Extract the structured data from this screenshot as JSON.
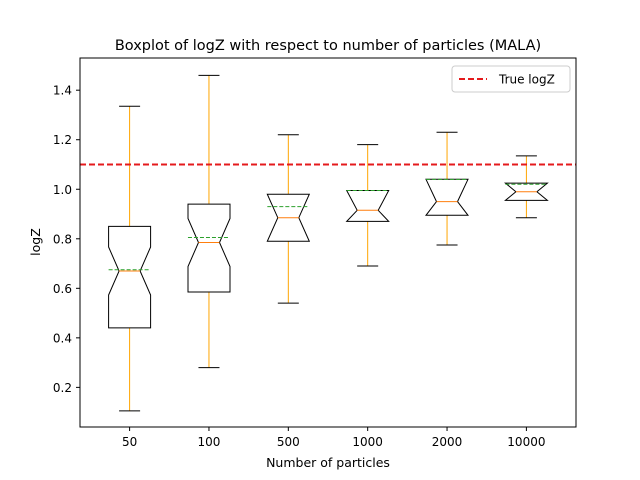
{
  "chart_data": {
    "type": "boxplot",
    "title": "Boxplot of logZ with respect to number of particles (MALA)",
    "xlabel": "Number of particles",
    "ylabel": "logZ",
    "ylim": [
      0.04,
      1.53
    ],
    "yticks": [
      "0.2",
      "0.4",
      "0.6",
      "0.8",
      "1.0",
      "1.2",
      "1.4"
    ],
    "notched": true,
    "grid": false,
    "legend_position": "top-right",
    "categories": [
      "50",
      "100",
      "500",
      "1000",
      "2000",
      "10000"
    ],
    "boxes": [
      {
        "category": "50",
        "whisker_low": 0.105,
        "q1": 0.44,
        "median": 0.67,
        "q3": 0.85,
        "whisker_high": 1.335,
        "mean": 0.675
      },
      {
        "category": "100",
        "whisker_low": 0.28,
        "q1": 0.585,
        "median": 0.785,
        "q3": 0.94,
        "whisker_high": 1.46,
        "mean": 0.805
      },
      {
        "category": "500",
        "whisker_low": 0.54,
        "q1": 0.79,
        "median": 0.885,
        "q3": 0.98,
        "whisker_high": 1.22,
        "mean": 0.93
      },
      {
        "category": "1000",
        "whisker_low": 0.69,
        "q1": 0.87,
        "median": 0.915,
        "q3": 0.995,
        "whisker_high": 1.18,
        "mean": 0.995
      },
      {
        "category": "2000",
        "whisker_low": 0.775,
        "q1": 0.895,
        "median": 0.95,
        "q3": 1.04,
        "whisker_high": 1.23,
        "mean": 1.04
      },
      {
        "category": "10000",
        "whisker_low": 0.885,
        "q1": 0.955,
        "median": 0.99,
        "q3": 1.025,
        "whisker_high": 1.135,
        "mean": 1.02
      }
    ],
    "reference_line": {
      "label": "True logZ",
      "value": 1.1,
      "color": "#e41a1c"
    },
    "colors": {
      "box": "#000000",
      "whisker": "#ffa500",
      "median": "#ff7f0e",
      "mean": "#2ca02c"
    }
  }
}
